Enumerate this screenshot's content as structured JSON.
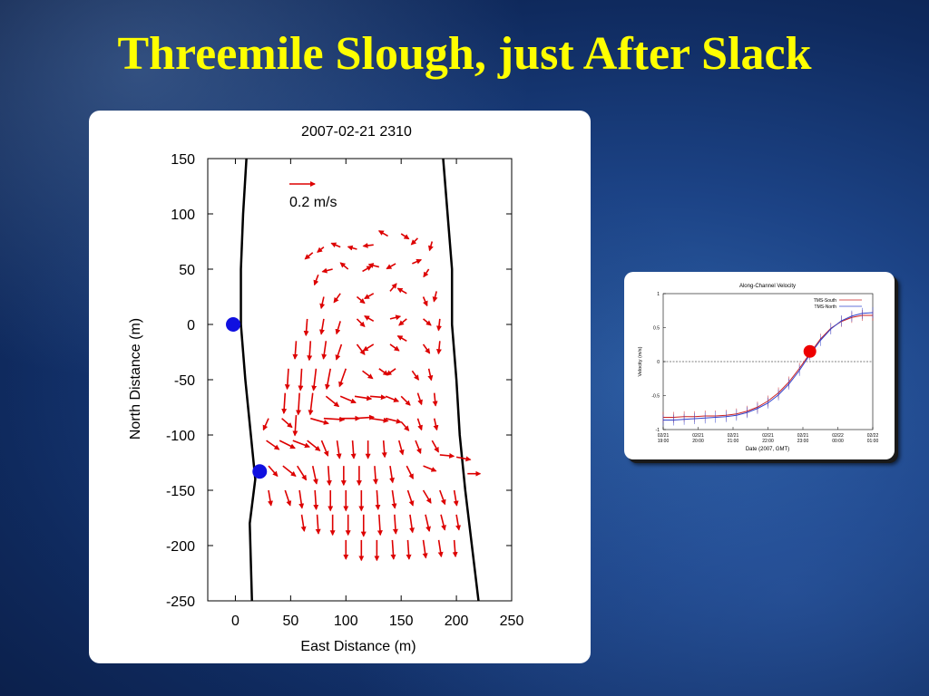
{
  "slide": {
    "title": "Threemile Slough, just After Slack"
  },
  "chart_data": [
    {
      "type": "scatter",
      "subtype": "vector-field",
      "title": "2007-02-21 2310",
      "xlabel": "East Distance (m)",
      "ylabel": "North Distance (m)",
      "xlim": [
        -25,
        250
      ],
      "ylim": [
        -250,
        150
      ],
      "xticks": [
        "0",
        "50",
        "100",
        "150",
        "200",
        "250"
      ],
      "yticks": [
        "150",
        "100",
        "50",
        "0",
        "-50",
        "-100",
        "-150",
        "-200",
        "-250"
      ],
      "scale_arrow_label": "0.2 m/s",
      "vector_color": "#dd0000",
      "marker_color": "#1010e0",
      "markers": [
        {
          "x": -2,
          "y": 0
        },
        {
          "x": 22,
          "y": -133
        }
      ],
      "west_bank": [
        [
          10,
          150
        ],
        [
          7,
          100
        ],
        [
          5,
          50
        ],
        [
          5,
          0
        ],
        [
          9,
          -50
        ],
        [
          14,
          -100
        ],
        [
          18,
          -140
        ],
        [
          13,
          -180
        ],
        [
          15,
          -250
        ]
      ],
      "east_bank": [
        [
          188,
          150
        ],
        [
          192,
          100
        ],
        [
          196,
          50
        ],
        [
          196,
          0
        ],
        [
          200,
          -50
        ],
        [
          203,
          -100
        ],
        [
          208,
          -150
        ],
        [
          214,
          -200
        ],
        [
          220,
          -250
        ]
      ],
      "vectors": [
        {
          "x": 70,
          "y": 65,
          "u": -0.06,
          "v": -0.05
        },
        {
          "x": 80,
          "y": 70,
          "u": -0.05,
          "v": -0.04
        },
        {
          "x": 95,
          "y": 70,
          "u": -0.07,
          "v": 0.03
        },
        {
          "x": 110,
          "y": 68,
          "u": -0.07,
          "v": 0.02
        },
        {
          "x": 125,
          "y": 72,
          "u": -0.08,
          "v": -0.01
        },
        {
          "x": 138,
          "y": 80,
          "u": -0.07,
          "v": 0.04
        },
        {
          "x": 150,
          "y": 82,
          "u": 0.06,
          "v": -0.04
        },
        {
          "x": 165,
          "y": 78,
          "u": -0.05,
          "v": -0.05
        },
        {
          "x": 178,
          "y": 75,
          "u": -0.02,
          "v": -0.07
        },
        {
          "x": 75,
          "y": 45,
          "u": -0.03,
          "v": -0.08
        },
        {
          "x": 88,
          "y": 50,
          "u": -0.08,
          "v": -0.02
        },
        {
          "x": 102,
          "y": 50,
          "u": -0.06,
          "v": 0.05
        },
        {
          "x": 115,
          "y": 48,
          "u": 0.07,
          "v": 0.04
        },
        {
          "x": 130,
          "y": 52,
          "u": -0.08,
          "v": 0.02
        },
        {
          "x": 145,
          "y": 55,
          "u": -0.07,
          "v": -0.04
        },
        {
          "x": 160,
          "y": 55,
          "u": 0.07,
          "v": 0.03
        },
        {
          "x": 175,
          "y": 50,
          "u": -0.04,
          "v": -0.06
        },
        {
          "x": 80,
          "y": 25,
          "u": -0.02,
          "v": -0.09
        },
        {
          "x": 95,
          "y": 28,
          "u": -0.05,
          "v": -0.07
        },
        {
          "x": 110,
          "y": 25,
          "u": 0.06,
          "v": -0.05
        },
        {
          "x": 125,
          "y": 28,
          "u": -0.07,
          "v": -0.04
        },
        {
          "x": 140,
          "y": 30,
          "u": 0.05,
          "v": 0.06
        },
        {
          "x": 155,
          "y": 28,
          "u": -0.07,
          "v": 0.04
        },
        {
          "x": 170,
          "y": 25,
          "u": 0.03,
          "v": -0.07
        },
        {
          "x": 182,
          "y": 30,
          "u": -0.02,
          "v": -0.08
        },
        {
          "x": 65,
          "y": 5,
          "u": -0.01,
          "v": -0.13
        },
        {
          "x": 80,
          "y": 5,
          "u": -0.02,
          "v": -0.12
        },
        {
          "x": 95,
          "y": 3,
          "u": -0.03,
          "v": -0.1
        },
        {
          "x": 110,
          "y": 5,
          "u": 0.06,
          "v": -0.06
        },
        {
          "x": 125,
          "y": 3,
          "u": -0.07,
          "v": 0.04
        },
        {
          "x": 140,
          "y": 5,
          "u": 0.08,
          "v": 0.02
        },
        {
          "x": 155,
          "y": 5,
          "u": -0.06,
          "v": -0.05
        },
        {
          "x": 170,
          "y": 5,
          "u": 0.06,
          "v": -0.05
        },
        {
          "x": 185,
          "y": 5,
          "u": -0.01,
          "v": -0.09
        },
        {
          "x": 55,
          "y": -15,
          "u": -0.01,
          "v": -0.14
        },
        {
          "x": 68,
          "y": -15,
          "u": -0.01,
          "v": -0.15
        },
        {
          "x": 82,
          "y": -15,
          "u": -0.02,
          "v": -0.14
        },
        {
          "x": 96,
          "y": -18,
          "u": -0.04,
          "v": -0.12
        },
        {
          "x": 110,
          "y": -18,
          "u": 0.06,
          "v": -0.08
        },
        {
          "x": 125,
          "y": -18,
          "u": -0.08,
          "v": -0.05
        },
        {
          "x": 140,
          "y": -18,
          "u": 0.07,
          "v": -0.05
        },
        {
          "x": 155,
          "y": -15,
          "u": -0.07,
          "v": 0.04
        },
        {
          "x": 170,
          "y": -18,
          "u": 0.05,
          "v": -0.07
        },
        {
          "x": 185,
          "y": -15,
          "u": -0.01,
          "v": -0.1
        },
        {
          "x": 48,
          "y": -40,
          "u": -0.01,
          "v": -0.16
        },
        {
          "x": 60,
          "y": -40,
          "u": -0.01,
          "v": -0.17
        },
        {
          "x": 73,
          "y": -40,
          "u": -0.02,
          "v": -0.17
        },
        {
          "x": 86,
          "y": -40,
          "u": -0.03,
          "v": -0.16
        },
        {
          "x": 100,
          "y": -40,
          "u": -0.05,
          "v": -0.14
        },
        {
          "x": 115,
          "y": -42,
          "u": 0.08,
          "v": -0.06
        },
        {
          "x": 130,
          "y": -40,
          "u": 0.07,
          "v": -0.05
        },
        {
          "x": 145,
          "y": -40,
          "u": -0.07,
          "v": -0.05
        },
        {
          "x": 160,
          "y": -42,
          "u": 0.05,
          "v": -0.07
        },
        {
          "x": 175,
          "y": -40,
          "u": 0.02,
          "v": -0.09
        },
        {
          "x": 45,
          "y": -62,
          "u": -0.01,
          "v": -0.16
        },
        {
          "x": 58,
          "y": -62,
          "u": -0.01,
          "v": -0.17
        },
        {
          "x": 70,
          "y": -62,
          "u": -0.02,
          "v": -0.17
        },
        {
          "x": 82,
          "y": -65,
          "u": 0.1,
          "v": -0.08
        },
        {
          "x": 95,
          "y": -65,
          "u": 0.12,
          "v": -0.05
        },
        {
          "x": 108,
          "y": -65,
          "u": 0.13,
          "v": -0.02
        },
        {
          "x": 122,
          "y": -65,
          "u": 0.12,
          "v": -0.01
        },
        {
          "x": 136,
          "y": -65,
          "u": 0.1,
          "v": -0.04
        },
        {
          "x": 150,
          "y": -65,
          "u": 0.07,
          "v": -0.07
        },
        {
          "x": 165,
          "y": -62,
          "u": 0.03,
          "v": -0.09
        },
        {
          "x": 180,
          "y": -62,
          "u": 0.01,
          "v": -0.1
        },
        {
          "x": 30,
          "y": -85,
          "u": -0.04,
          "v": -0.09
        },
        {
          "x": 42,
          "y": -85,
          "u": 0.08,
          "v": -0.07
        },
        {
          "x": 55,
          "y": -82,
          "u": -0.01,
          "v": -0.16
        },
        {
          "x": 68,
          "y": -85,
          "u": 0.14,
          "v": -0.04
        },
        {
          "x": 80,
          "y": -85,
          "u": 0.16,
          "v": -0.01
        },
        {
          "x": 94,
          "y": -85,
          "u": 0.16,
          "v": 0.0
        },
        {
          "x": 108,
          "y": -85,
          "u": 0.15,
          "v": 0.01
        },
        {
          "x": 122,
          "y": -85,
          "u": 0.14,
          "v": -0.02
        },
        {
          "x": 136,
          "y": -85,
          "u": 0.12,
          "v": -0.03
        },
        {
          "x": 150,
          "y": -88,
          "u": 0.06,
          "v": -0.07
        },
        {
          "x": 165,
          "y": -85,
          "u": 0.03,
          "v": -0.09
        },
        {
          "x": 180,
          "y": -85,
          "u": 0.02,
          "v": -0.09
        },
        {
          "x": 28,
          "y": -105,
          "u": 0.1,
          "v": -0.07
        },
        {
          "x": 40,
          "y": -105,
          "u": 0.12,
          "v": -0.06
        },
        {
          "x": 52,
          "y": -105,
          "u": 0.13,
          "v": -0.05
        },
        {
          "x": 65,
          "y": -105,
          "u": 0.1,
          "v": -0.08
        },
        {
          "x": 78,
          "y": -105,
          "u": 0.05,
          "v": -0.12
        },
        {
          "x": 92,
          "y": -105,
          "u": 0.02,
          "v": -0.14
        },
        {
          "x": 106,
          "y": -105,
          "u": 0.01,
          "v": -0.14
        },
        {
          "x": 120,
          "y": -105,
          "u": 0.0,
          "v": -0.14
        },
        {
          "x": 134,
          "y": -105,
          "u": 0.01,
          "v": -0.13
        },
        {
          "x": 148,
          "y": -105,
          "u": 0.03,
          "v": -0.11
        },
        {
          "x": 163,
          "y": -105,
          "u": 0.04,
          "v": -0.1
        },
        {
          "x": 178,
          "y": -105,
          "u": 0.05,
          "v": -0.09
        },
        {
          "x": 30,
          "y": -128,
          "u": 0.07,
          "v": -0.08
        },
        {
          "x": 43,
          "y": -128,
          "u": 0.1,
          "v": -0.08
        },
        {
          "x": 56,
          "y": -128,
          "u": 0.07,
          "v": -0.11
        },
        {
          "x": 70,
          "y": -128,
          "u": 0.03,
          "v": -0.14
        },
        {
          "x": 84,
          "y": -128,
          "u": 0.01,
          "v": -0.15
        },
        {
          "x": 98,
          "y": -128,
          "u": 0.0,
          "v": -0.15
        },
        {
          "x": 112,
          "y": -128,
          "u": 0.0,
          "v": -0.15
        },
        {
          "x": 126,
          "y": -128,
          "u": 0.01,
          "v": -0.14
        },
        {
          "x": 140,
          "y": -128,
          "u": 0.02,
          "v": -0.13
        },
        {
          "x": 155,
          "y": -128,
          "u": 0.05,
          "v": -0.1
        },
        {
          "x": 170,
          "y": -128,
          "u": 0.1,
          "v": -0.04
        },
        {
          "x": 185,
          "y": -118,
          "u": 0.11,
          "v": -0.01
        },
        {
          "x": 200,
          "y": -120,
          "u": 0.11,
          "v": -0.02
        },
        {
          "x": 210,
          "y": -135,
          "u": 0.1,
          "v": 0.0
        },
        {
          "x": 30,
          "y": -150,
          "u": 0.02,
          "v": -0.12
        },
        {
          "x": 45,
          "y": -150,
          "u": 0.04,
          "v": -0.12
        },
        {
          "x": 58,
          "y": -150,
          "u": 0.02,
          "v": -0.14
        },
        {
          "x": 72,
          "y": -150,
          "u": 0.01,
          "v": -0.15
        },
        {
          "x": 86,
          "y": -150,
          "u": 0.0,
          "v": -0.16
        },
        {
          "x": 100,
          "y": -150,
          "u": 0.0,
          "v": -0.16
        },
        {
          "x": 114,
          "y": -150,
          "u": 0.0,
          "v": -0.16
        },
        {
          "x": 128,
          "y": -150,
          "u": 0.01,
          "v": -0.15
        },
        {
          "x": 142,
          "y": -150,
          "u": 0.02,
          "v": -0.14
        },
        {
          "x": 156,
          "y": -150,
          "u": 0.04,
          "v": -0.12
        },
        {
          "x": 170,
          "y": -150,
          "u": 0.06,
          "v": -0.1
        },
        {
          "x": 185,
          "y": -150,
          "u": 0.04,
          "v": -0.11
        },
        {
          "x": 198,
          "y": -150,
          "u": 0.02,
          "v": -0.12
        },
        {
          "x": 60,
          "y": -172,
          "u": 0.02,
          "v": -0.13
        },
        {
          "x": 74,
          "y": -172,
          "u": 0.01,
          "v": -0.15
        },
        {
          "x": 88,
          "y": -172,
          "u": 0.0,
          "v": -0.16
        },
        {
          "x": 102,
          "y": -172,
          "u": 0.0,
          "v": -0.16
        },
        {
          "x": 116,
          "y": -172,
          "u": 0.0,
          "v": -0.17
        },
        {
          "x": 130,
          "y": -172,
          "u": 0.01,
          "v": -0.16
        },
        {
          "x": 144,
          "y": -172,
          "u": 0.01,
          "v": -0.15
        },
        {
          "x": 158,
          "y": -172,
          "u": 0.02,
          "v": -0.14
        },
        {
          "x": 172,
          "y": -172,
          "u": 0.03,
          "v": -0.13
        },
        {
          "x": 186,
          "y": -172,
          "u": 0.03,
          "v": -0.12
        },
        {
          "x": 200,
          "y": -172,
          "u": 0.02,
          "v": -0.12
        },
        {
          "x": 100,
          "y": -195,
          "u": 0.0,
          "v": -0.15
        },
        {
          "x": 114,
          "y": -195,
          "u": 0.0,
          "v": -0.16
        },
        {
          "x": 128,
          "y": -195,
          "u": 0.0,
          "v": -0.16
        },
        {
          "x": 142,
          "y": -195,
          "u": 0.01,
          "v": -0.15
        },
        {
          "x": 156,
          "y": -195,
          "u": 0.01,
          "v": -0.15
        },
        {
          "x": 170,
          "y": -195,
          "u": 0.02,
          "v": -0.14
        },
        {
          "x": 184,
          "y": -195,
          "u": 0.02,
          "v": -0.13
        },
        {
          "x": 198,
          "y": -195,
          "u": 0.01,
          "v": -0.13
        }
      ]
    },
    {
      "type": "line",
      "title": "Along-Channel Velocity",
      "xlabel": "Date (2007, GMT)",
      "ylabel": "Velocity (m/s)",
      "ylim": [
        -1,
        1
      ],
      "xlim": [
        0,
        6
      ],
      "yticks": [
        "1",
        "0.5",
        "0",
        "-0.5",
        "-1"
      ],
      "xticks": [
        {
          "date": "02/21",
          "time": "19:00"
        },
        {
          "date": "02/21",
          "time": "20:00"
        },
        {
          "date": "02/21",
          "time": "21:00"
        },
        {
          "date": "02/21",
          "time": "22:00"
        },
        {
          "date": "02/21",
          "time": "23:00"
        },
        {
          "date": "02/22",
          "time": "00:00"
        },
        {
          "date": "02/22",
          "time": "01:00"
        }
      ],
      "x": [
        0.0,
        0.3,
        0.6,
        0.9,
        1.2,
        1.5,
        1.8,
        2.1,
        2.4,
        2.7,
        3.0,
        3.3,
        3.6,
        3.9,
        4.2,
        4.5,
        4.8,
        5.1,
        5.4,
        5.7,
        6.0
      ],
      "series": [
        {
          "name": "TMS-South",
          "color": "#cc2222",
          "values": [
            -0.82,
            -0.82,
            -0.81,
            -0.81,
            -0.8,
            -0.8,
            -0.79,
            -0.77,
            -0.73,
            -0.67,
            -0.58,
            -0.46,
            -0.3,
            -0.1,
            0.12,
            0.33,
            0.49,
            0.59,
            0.65,
            0.68,
            0.68
          ]
        },
        {
          "name": "TMS-North",
          "color": "#3344cc",
          "values": [
            -0.86,
            -0.86,
            -0.85,
            -0.84,
            -0.83,
            -0.82,
            -0.81,
            -0.79,
            -0.75,
            -0.69,
            -0.61,
            -0.49,
            -0.33,
            -0.13,
            0.1,
            0.31,
            0.48,
            0.6,
            0.67,
            0.71,
            0.72
          ]
        }
      ],
      "highlight_point": {
        "x": 4.2,
        "y": 0.15,
        "color": "#ee0000"
      }
    }
  ]
}
